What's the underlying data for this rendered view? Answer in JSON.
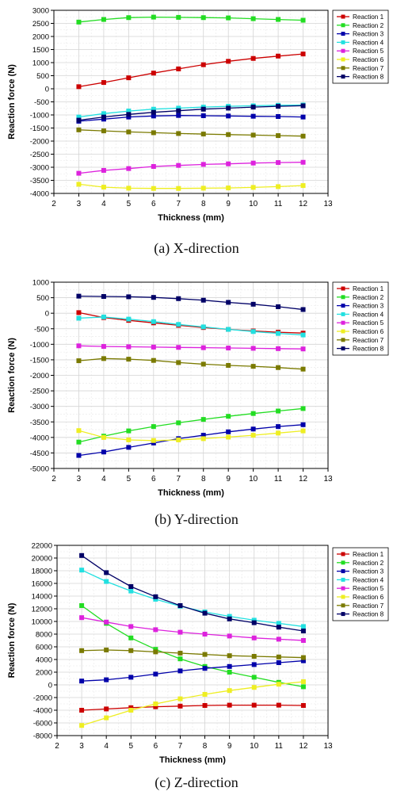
{
  "chart_data": [
    {
      "type": "line",
      "caption": "(a) X-direction",
      "xlabel": "Thickness (mm)",
      "ylabel": "Reaction force (N)",
      "xlim": [
        2,
        13
      ],
      "ylim": [
        -4000,
        3000
      ],
      "xticks": [
        2,
        3,
        4,
        5,
        6,
        7,
        8,
        9,
        10,
        11,
        12,
        13
      ],
      "yticks": [
        -4000,
        -3500,
        -3000,
        -2500,
        -2000,
        -1500,
        -1000,
        -500,
        0,
        500,
        1000,
        1500,
        2000,
        2500,
        3000
      ],
      "grid": true,
      "legend": "top-right",
      "x": [
        3,
        4,
        5,
        6,
        7,
        8,
        9,
        10,
        11,
        12
      ],
      "series": [
        {
          "name": "Reaction 1",
          "color": "#cc0000",
          "values": [
            80,
            240,
            420,
            600,
            760,
            920,
            1050,
            1160,
            1250,
            1330
          ]
        },
        {
          "name": "Reaction 2",
          "color": "#22dd22",
          "values": [
            2550,
            2650,
            2720,
            2740,
            2730,
            2720,
            2710,
            2680,
            2650,
            2620
          ]
        },
        {
          "name": "Reaction 3",
          "color": "#0000aa",
          "values": [
            -1240,
            -1160,
            -1080,
            -1040,
            -1020,
            -1030,
            -1040,
            -1050,
            -1060,
            -1080
          ]
        },
        {
          "name": "Reaction 4",
          "color": "#22e0e0",
          "values": [
            -1080,
            -950,
            -850,
            -780,
            -740,
            -700,
            -670,
            -650,
            -630,
            -620
          ]
        },
        {
          "name": "Reaction 5",
          "color": "#dd22dd",
          "values": [
            -3230,
            -3120,
            -3050,
            -2970,
            -2930,
            -2890,
            -2870,
            -2840,
            -2820,
            -2810
          ]
        },
        {
          "name": "Reaction 6",
          "color": "#eeee22",
          "values": [
            -3650,
            -3760,
            -3800,
            -3810,
            -3810,
            -3800,
            -3790,
            -3770,
            -3740,
            -3700
          ]
        },
        {
          "name": "Reaction 7",
          "color": "#7a7a00",
          "values": [
            -1570,
            -1610,
            -1650,
            -1680,
            -1710,
            -1730,
            -1750,
            -1770,
            -1790,
            -1810
          ]
        },
        {
          "name": "Reaction 8",
          "color": "#000066",
          "values": [
            -1200,
            -1080,
            -980,
            -900,
            -840,
            -780,
            -740,
            -700,
            -670,
            -650
          ]
        }
      ]
    },
    {
      "type": "line",
      "caption": "(b) Y-direction",
      "xlabel": "Thickness (mm)",
      "ylabel": "Reaction force (N)",
      "xlim": [
        2,
        13
      ],
      "ylim": [
        -5000,
        1000
      ],
      "xticks": [
        2,
        3,
        4,
        5,
        6,
        7,
        8,
        9,
        10,
        11,
        12,
        13
      ],
      "yticks": [
        -5000,
        -4500,
        -4000,
        -3500,
        -3000,
        -2500,
        -2000,
        -1500,
        -1000,
        -500,
        0,
        500,
        1000
      ],
      "grid": true,
      "legend": "top-right",
      "x": [
        3,
        4,
        5,
        6,
        7,
        8,
        9,
        10,
        11,
        12
      ],
      "series": [
        {
          "name": "Reaction 1",
          "color": "#cc0000",
          "values": [
            20,
            -140,
            -230,
            -310,
            -390,
            -460,
            -520,
            -570,
            -610,
            -640
          ]
        },
        {
          "name": "Reaction 2",
          "color": "#22dd22",
          "values": [
            -4150,
            -3960,
            -3790,
            -3650,
            -3530,
            -3420,
            -3320,
            -3230,
            -3150,
            -3070
          ]
        },
        {
          "name": "Reaction 3",
          "color": "#0000aa",
          "values": [
            -4580,
            -4470,
            -4320,
            -4180,
            -4040,
            -3930,
            -3820,
            -3730,
            -3650,
            -3590
          ]
        },
        {
          "name": "Reaction 4",
          "color": "#22e0e0",
          "values": [
            -160,
            -120,
            -190,
            -270,
            -360,
            -440,
            -520,
            -590,
            -650,
            -700
          ]
        },
        {
          "name": "Reaction 5",
          "color": "#dd22dd",
          "values": [
            -1050,
            -1070,
            -1080,
            -1090,
            -1100,
            -1110,
            -1120,
            -1130,
            -1140,
            -1150
          ]
        },
        {
          "name": "Reaction 6",
          "color": "#eeee22",
          "values": [
            -3780,
            -4000,
            -4080,
            -4100,
            -4080,
            -4040,
            -3990,
            -3930,
            -3860,
            -3790
          ]
        },
        {
          "name": "Reaction 7",
          "color": "#7a7a00",
          "values": [
            -1530,
            -1460,
            -1480,
            -1520,
            -1590,
            -1640,
            -1680,
            -1710,
            -1750,
            -1800
          ]
        },
        {
          "name": "Reaction 8",
          "color": "#000066",
          "values": [
            550,
            540,
            530,
            510,
            470,
            420,
            350,
            290,
            210,
            120
          ]
        }
      ]
    },
    {
      "type": "line",
      "caption": "(c) Z-direction",
      "xlabel": "Thickness (mm)",
      "ylabel": "Reaction force (N)",
      "xlim": [
        2,
        13
      ],
      "ylim": [
        -8000,
        22000
      ],
      "xticks": [
        2,
        3,
        4,
        5,
        6,
        7,
        8,
        9,
        10,
        11,
        12,
        13
      ],
      "yticks": [
        -8000,
        -6000,
        -4000,
        -2000,
        0,
        2000,
        4000,
        6000,
        8000,
        10000,
        12000,
        14000,
        16000,
        18000,
        20000,
        22000
      ],
      "grid": true,
      "legend": "top-right",
      "x": [
        3,
        4,
        5,
        6,
        7,
        8,
        9,
        10,
        11,
        12
      ],
      "series": [
        {
          "name": "Reaction 1",
          "color": "#cc0000",
          "values": [
            -4000,
            -3800,
            -3600,
            -3450,
            -3350,
            -3250,
            -3200,
            -3200,
            -3200,
            -3250
          ]
        },
        {
          "name": "Reaction 2",
          "color": "#22dd22",
          "values": [
            12500,
            9700,
            7400,
            5600,
            4100,
            2900,
            2000,
            1200,
            400,
            -300
          ]
        },
        {
          "name": "Reaction 3",
          "color": "#0000aa",
          "values": [
            600,
            800,
            1200,
            1700,
            2200,
            2600,
            2900,
            3200,
            3500,
            3800
          ]
        },
        {
          "name": "Reaction 4",
          "color": "#22e0e0",
          "values": [
            18100,
            16300,
            14800,
            13500,
            12400,
            11500,
            10800,
            10200,
            9700,
            9200
          ]
        },
        {
          "name": "Reaction 5",
          "color": "#dd22dd",
          "values": [
            10600,
            9900,
            9200,
            8700,
            8300,
            8000,
            7700,
            7400,
            7200,
            7000
          ]
        },
        {
          "name": "Reaction 6",
          "color": "#eeee22",
          "values": [
            -6400,
            -5200,
            -4000,
            -3000,
            -2200,
            -1500,
            -900,
            -400,
            100,
            500
          ]
        },
        {
          "name": "Reaction 7",
          "color": "#7a7a00",
          "values": [
            5400,
            5500,
            5400,
            5200,
            5000,
            4800,
            4600,
            4500,
            4400,
            4300
          ]
        },
        {
          "name": "Reaction 8",
          "color": "#000066",
          "values": [
            20400,
            17700,
            15500,
            13900,
            12500,
            11300,
            10400,
            9800,
            9100,
            8500
          ]
        }
      ]
    }
  ]
}
